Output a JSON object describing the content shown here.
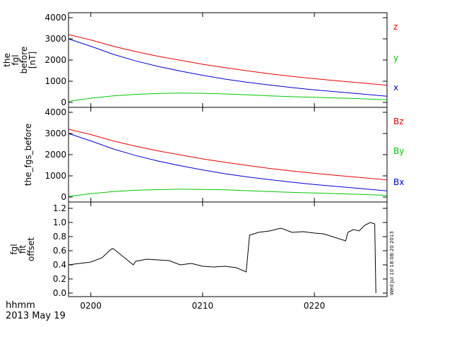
{
  "time_footer": {
    "label": "hhmm",
    "date": "2013 May 19"
  },
  "stamp": "Wed Jul 10 18:08:20 2013",
  "chart_data": [
    {
      "type": "line",
      "ylabel_lines": [
        "the",
        "fgl",
        "before",
        "[nT]"
      ],
      "ylim": [
        0,
        4000
      ],
      "yticks": [
        0,
        1000,
        2000,
        3000,
        4000
      ],
      "xlim": [
        198,
        226.5
      ],
      "xticks": [
        200,
        210,
        220
      ],
      "xtick_labels": [
        "0200",
        "0210",
        "0220"
      ],
      "series": [
        {
          "name": "z",
          "color": "#e60000",
          "x": [
            198,
            200,
            202,
            204,
            206,
            208,
            210,
            212,
            214,
            216,
            218,
            220,
            222,
            224,
            226.5
          ],
          "values": [
            3200,
            2950,
            2650,
            2400,
            2180,
            1990,
            1800,
            1640,
            1490,
            1350,
            1230,
            1120,
            1020,
            930,
            810
          ]
        },
        {
          "name": "y",
          "color": "#00c800",
          "x": [
            198,
            200,
            202,
            204,
            206,
            208,
            210,
            212,
            214,
            216,
            218,
            220,
            222,
            224,
            226.5
          ],
          "values": [
            50,
            200,
            310,
            380,
            420,
            440,
            430,
            400,
            360,
            310,
            270,
            240,
            210,
            180,
            120
          ]
        },
        {
          "name": "x",
          "color": "#0000d2",
          "x": [
            198,
            200,
            202,
            204,
            206,
            208,
            210,
            212,
            214,
            216,
            218,
            220,
            222,
            224,
            226.5
          ],
          "values": [
            3000,
            2650,
            2270,
            1960,
            1700,
            1480,
            1280,
            1100,
            950,
            820,
            700,
            590,
            500,
            410,
            290
          ]
        }
      ]
    },
    {
      "type": "line",
      "ylabel_lines": [
        "the_fgs_before"
      ],
      "ylim": [
        0,
        4000
      ],
      "yticks": [
        0,
        1000,
        2000,
        3000,
        4000
      ],
      "xlim": [
        198,
        226.5
      ],
      "xticks": [
        200,
        210,
        220
      ],
      "xtick_labels": [
        "0200",
        "0210",
        "0220"
      ],
      "series": [
        {
          "name": "Bz",
          "color": "#e60000",
          "x": [
            198,
            200,
            202,
            204,
            206,
            208,
            210,
            212,
            214,
            216,
            218,
            220,
            222,
            224,
            226.5
          ],
          "values": [
            3200,
            2950,
            2650,
            2400,
            2180,
            1990,
            1800,
            1640,
            1490,
            1350,
            1230,
            1120,
            1020,
            930,
            810
          ]
        },
        {
          "name": "By",
          "color": "#00c800",
          "x": [
            198,
            200,
            202,
            204,
            206,
            208,
            210,
            212,
            214,
            216,
            218,
            220,
            222,
            224,
            226.5
          ],
          "values": [
            30,
            160,
            260,
            320,
            350,
            370,
            360,
            340,
            300,
            260,
            220,
            190,
            160,
            130,
            80
          ]
        },
        {
          "name": "Bx",
          "color": "#0000d2",
          "x": [
            198,
            200,
            202,
            204,
            206,
            208,
            210,
            212,
            214,
            216,
            218,
            220,
            222,
            224,
            226.5
          ],
          "values": [
            3000,
            2650,
            2270,
            1960,
            1700,
            1480,
            1280,
            1100,
            950,
            820,
            700,
            590,
            500,
            410,
            290
          ]
        }
      ]
    },
    {
      "type": "line",
      "ylabel_lines": [
        "fgl",
        "fit",
        "offset"
      ],
      "ylim": [
        -0.05,
        1.25
      ],
      "yticks": [
        0.0,
        0.2,
        0.4,
        0.6,
        0.8,
        1.0,
        1.2
      ],
      "ytick_labels": [
        "0.0",
        "0.2",
        "0.4",
        "0.6",
        "0.8",
        "1.0",
        "1.2"
      ],
      "xlim": [
        198,
        226.5
      ],
      "xticks": [
        200,
        210,
        220
      ],
      "xtick_labels": [
        "0200",
        "0210",
        "0220"
      ],
      "series": [
        {
          "color": "#000000",
          "x": [
            198,
            199,
            200,
            201,
            201.8,
            202,
            203.8,
            204,
            205,
            206,
            207,
            208,
            209,
            210,
            211,
            212,
            213,
            213.9,
            214.2,
            215,
            216,
            217,
            218,
            219,
            220,
            220.8,
            222.8,
            223,
            223.5,
            224,
            224.5,
            225,
            225.4,
            225.5
          ],
          "values": [
            0.4,
            0.42,
            0.44,
            0.5,
            0.62,
            0.63,
            0.4,
            0.45,
            0.48,
            0.47,
            0.46,
            0.4,
            0.42,
            0.38,
            0.37,
            0.38,
            0.36,
            0.3,
            0.82,
            0.86,
            0.88,
            0.92,
            0.86,
            0.87,
            0.85,
            0.84,
            0.74,
            0.86,
            0.9,
            0.88,
            0.96,
            1.0,
            0.98,
            0.0
          ]
        }
      ]
    }
  ]
}
